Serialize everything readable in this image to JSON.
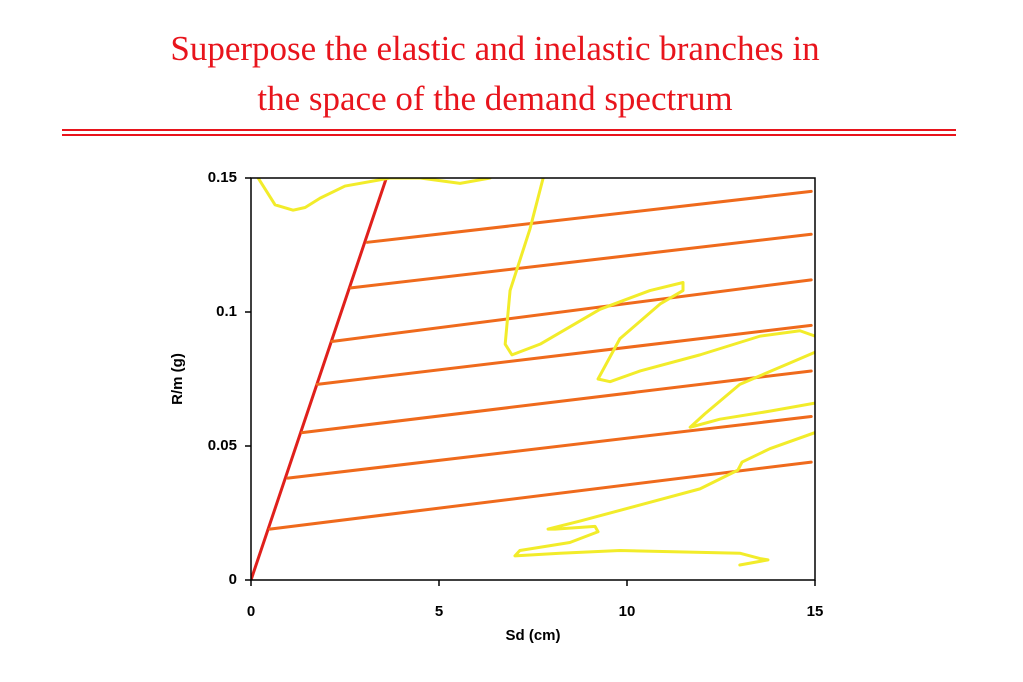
{
  "chart_data": {
    "type": "line",
    "title": [
      "Superpose the elastic and inelastic branches in",
      "the space of the demand spectrum"
    ],
    "title_color": "#e8141c",
    "xlabel": "Sd (cm)",
    "ylabel": "R/m (g)",
    "xlim": [
      0,
      15
    ],
    "ylim": [
      0,
      0.15
    ],
    "xticks": [
      0,
      5,
      10,
      15
    ],
    "yticks": [
      0,
      0.05,
      0.1,
      0.15
    ],
    "grid": false,
    "series": [
      {
        "color": "#e0201c",
        "x": [
          0,
          3.6
        ],
        "values": [
          0,
          0.15
        ]
      },
      {
        "color": "#ef6a1c",
        "x": [
          0.5,
          14.9
        ],
        "values": [
          0.019,
          0.044
        ]
      },
      {
        "color": "#ef6a1c",
        "x": [
          0.98,
          14.9
        ],
        "values": [
          0.038,
          0.061
        ]
      },
      {
        "color": "#ef6a1c",
        "x": [
          1.36,
          14.9
        ],
        "values": [
          0.055,
          0.078
        ]
      },
      {
        "color": "#ef6a1c",
        "x": [
          1.76,
          14.9
        ],
        "values": [
          0.073,
          0.095
        ]
      },
      {
        "color": "#ef6a1c",
        "x": [
          2.15,
          14.9
        ],
        "values": [
          0.089,
          0.112
        ]
      },
      {
        "color": "#ef6a1c",
        "x": [
          2.66,
          14.9
        ],
        "values": [
          0.109,
          0.129
        ]
      },
      {
        "color": "#ef6a1c",
        "x": [
          3.09,
          14.9
        ],
        "values": [
          0.126,
          0.145
        ]
      },
      {
        "color": "#f2ec2a",
        "x": [
          0.19,
          0.64,
          1.12,
          1.44,
          1.84,
          2.5,
          3.7,
          4.5,
          5.56,
          6.36,
          null,
          7.77,
          7.42,
          6.89,
          6.76,
          6.94,
          7.69,
          9.28,
          10.61,
          11.49,
          11.49,
          10.88,
          9.81,
          9.23,
          9.55,
          10.35,
          11.94,
          13.54,
          14.6,
          15,
          null,
          15,
          14.34,
          13.0,
          12.07,
          11.68,
          12.47,
          13.8,
          15,
          null,
          15,
          13.8,
          13.06,
          12.95,
          11.94,
          10.35,
          8.75,
          7.9,
          8.09,
          9.15,
          9.23,
          8.48,
          7.15,
          7.02,
          8.22,
          9.81,
          13.0,
          13.54,
          13.75,
          13.0
        ],
        "values": [
          0.15,
          0.14,
          0.138,
          0.139,
          0.1425,
          0.147,
          0.15,
          0.15,
          0.148,
          0.15,
          null,
          0.15,
          0.131,
          0.108,
          0.088,
          0.084,
          0.088,
          0.101,
          0.108,
          0.111,
          0.108,
          0.103,
          0.09,
          0.075,
          0.074,
          0.078,
          0.084,
          0.091,
          0.093,
          0.091,
          null,
          0.085,
          0.081,
          0.073,
          0.062,
          0.057,
          0.06,
          0.063,
          0.066,
          null,
          0.055,
          0.049,
          0.044,
          0.041,
          0.034,
          0.028,
          0.022,
          0.019,
          0.019,
          0.02,
          0.018,
          0.014,
          0.011,
          0.009,
          0.01,
          0.011,
          0.01,
          0.008,
          0.0075,
          0.0056
        ]
      }
    ]
  }
}
